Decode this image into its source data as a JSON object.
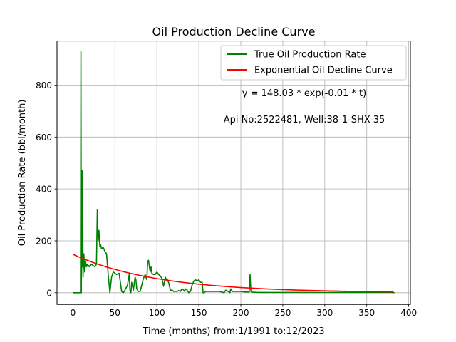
{
  "chart_data": {
    "type": "line",
    "title": "Oil Production Decline Curve",
    "xlabel": "Time (months) from:1/1991 to:12/2023",
    "ylabel": "Oil Production Rate (bbl/month)",
    "xlim": [
      -19,
      402
    ],
    "ylim": [
      -45,
      970
    ],
    "xticks": [
      0,
      50,
      100,
      150,
      200,
      250,
      300,
      350,
      400
    ],
    "yticks": [
      0,
      200,
      400,
      600,
      800
    ],
    "grid": true,
    "legend_position": "top-right",
    "annotations": [
      {
        "text": "y = 148.03 * exp(-0.01 * t)"
      },
      {
        "text": "Api No:2522481, Well:38-1-SHX-35"
      }
    ],
    "series": [
      {
        "name": "True Oil Production Rate",
        "color": "#008000",
        "x": [
          0,
          9,
          9.5,
          10,
          10.5,
          11,
          11.5,
          12,
          13,
          14,
          15,
          16,
          17,
          18,
          19,
          20,
          22,
          24,
          26,
          28,
          29,
          30,
          31,
          32,
          33,
          34,
          36,
          38,
          40,
          42,
          44,
          46,
          47,
          48,
          50,
          52,
          55,
          58,
          60,
          62,
          65,
          67,
          68,
          69,
          70,
          72,
          74,
          75,
          76,
          78,
          80,
          84,
          86,
          88,
          89,
          90,
          92,
          93,
          94,
          96,
          98,
          100,
          102,
          104,
          106,
          108,
          110,
          111,
          112,
          113,
          114,
          116,
          118,
          120,
          122,
          124,
          126,
          128,
          130,
          132,
          133,
          134,
          136,
          138,
          140,
          142,
          144,
          146,
          148,
          150,
          152,
          154,
          155,
          156,
          158,
          160,
          165,
          170,
          175,
          180,
          182,
          185,
          187,
          188,
          190,
          192,
          195,
          200,
          205,
          208,
          210,
          211,
          212,
          213,
          215,
          220,
          250,
          300,
          350,
          380,
          383
        ],
        "y": [
          0,
          0,
          930,
          0,
          470,
          100,
          470,
          60,
          150,
          80,
          120,
          100,
          110,
          100,
          105,
          100,
          110,
          105,
          100,
          110,
          320,
          200,
          240,
          180,
          185,
          170,
          175,
          160,
          150,
          70,
          0,
          60,
          70,
          80,
          75,
          70,
          75,
          5,
          0,
          10,
          30,
          70,
          5,
          0,
          40,
          10,
          60,
          50,
          15,
          5,
          5,
          55,
          70,
          50,
          120,
          125,
          80,
          100,
          75,
          70,
          70,
          80,
          70,
          65,
          55,
          25,
          60,
          50,
          55,
          45,
          40,
          10,
          10,
          5,
          5,
          5,
          8,
          5,
          15,
          10,
          5,
          15,
          10,
          0,
          5,
          30,
          45,
          50,
          45,
          50,
          40,
          40,
          0,
          0,
          5,
          5,
          5,
          5,
          5,
          0,
          10,
          5,
          0,
          15,
          5,
          5,
          5,
          5,
          3,
          3,
          3,
          70,
          5,
          2,
          2,
          1,
          1,
          1,
          1,
          1,
          0
        ]
      },
      {
        "name": "Exponential Oil Decline Curve",
        "color": "#ff0000",
        "model": {
          "a": 148.03,
          "b": 0.01
        },
        "x_range": [
          0,
          383
        ]
      }
    ]
  }
}
